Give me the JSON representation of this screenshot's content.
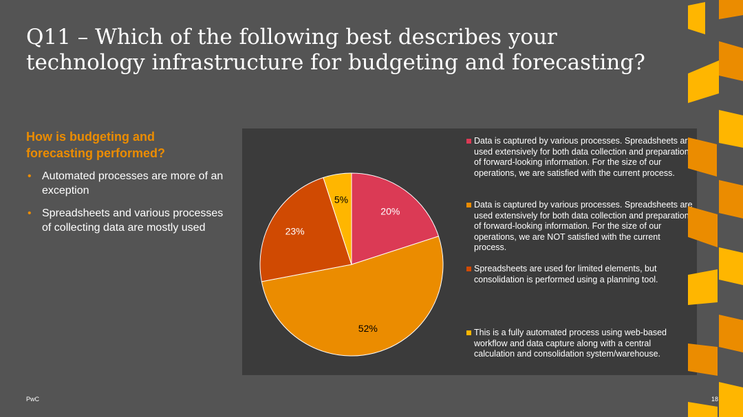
{
  "slide": {
    "title": "Q11 – Which of the following best describes your technology infrastructure for budgeting and forecasting?",
    "subheading": "How is budgeting and forecasting performed?",
    "bullets": [
      "Automated processes are more of an exception",
      "Spreadsheets and various processes of collecting data are mostly used"
    ],
    "bullet_glyph": "•",
    "footer_left": "PwC",
    "page_number": "18"
  },
  "colors": {
    "background": "#545454",
    "panel": "#3b3b3b",
    "accent": "#eb8c00"
  },
  "chart_data": {
    "type": "pie",
    "start_angle_deg": 0,
    "direction": "clockwise",
    "categories": [
      "Data is captured by various processes. Spreadsheets are used extensively for both data collection and preparation of forward-looking information. For the size of our operations, we are satisfied with the current process.",
      "Data is captured by various processes. Spreadsheets are used extensively for both data collection and preparation of forward-looking information. For the size of our operations, we are NOT satisfied with the current process.",
      "Spreadsheets are used for limited elements, but consolidation is performed using a planning tool.",
      "This is a fully automated process using web-based workflow and data capture along with a central calculation and consolidation system/warehouse."
    ],
    "values": [
      20,
      52,
      23,
      5
    ],
    "labels": [
      "20%",
      "52%",
      "23%",
      "5%"
    ],
    "colors": [
      "#db3a55",
      "#eb8c00",
      "#d04a02",
      "#ffb600"
    ],
    "label_colors": [
      "#ffffff",
      "#000000",
      "#ffffff",
      "#000000"
    ],
    "legend_position": "right"
  }
}
